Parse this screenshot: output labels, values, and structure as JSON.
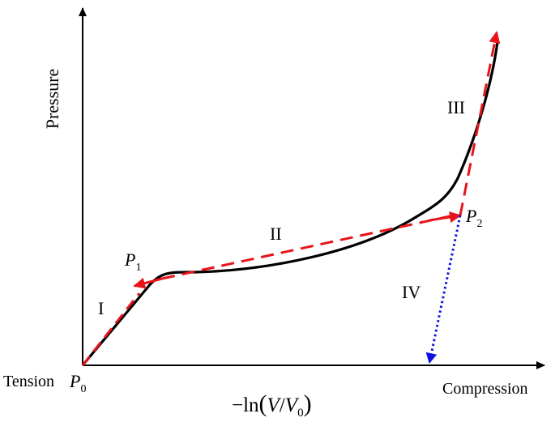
{
  "axes": {
    "y_label": "Pressure",
    "x_label_left": "Tension",
    "x_label_right": "Compression"
  },
  "formula": {
    "minus_ln": "−ln",
    "open": "(",
    "V": "V",
    "slash": "/",
    "V0_base": "V",
    "V0_sub": "0",
    "close": ")"
  },
  "points": {
    "p0": {
      "base": "P",
      "sub": "0"
    },
    "p1": {
      "base": "P",
      "sub": "1"
    },
    "p2": {
      "base": "P",
      "sub": "2"
    }
  },
  "regions": {
    "r1": "I",
    "r2": "II",
    "r3": "III",
    "r4": "IV"
  },
  "colors": {
    "curve": "#000000",
    "dashed_path": "#e8141b",
    "unloading_path": "#1010e6",
    "axes": "#000000"
  }
}
